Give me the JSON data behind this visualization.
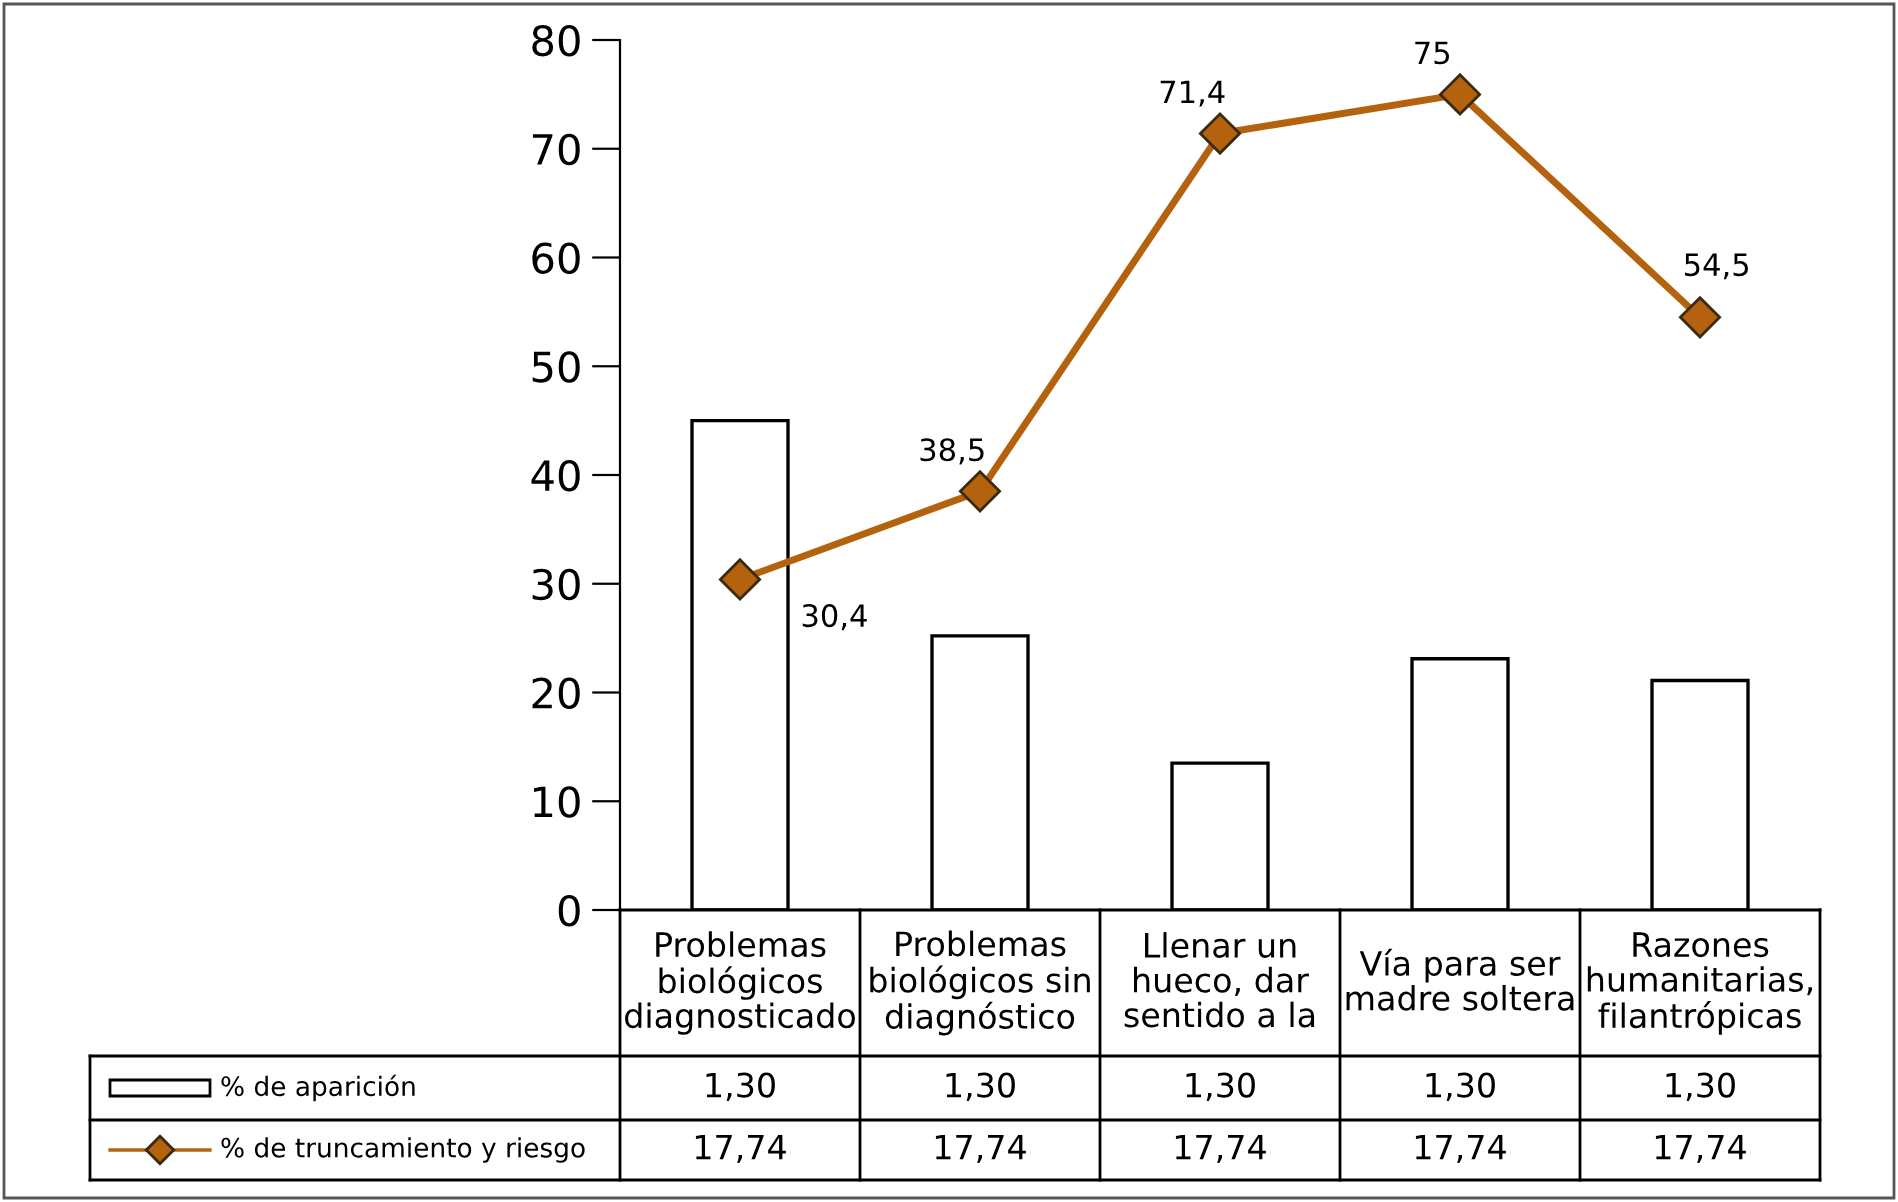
{
  "chart_data": {
    "type": "bar",
    "categories": [
      "Problemas\nbiológicos\ndiagnosticado",
      "Problemas\nbiológicos sin\ndiagnóstico",
      "Llenar un\nhueco, dar\nsentido a la",
      "Vía para ser\nmadre soltera",
      "Razones\nhumanitarias,\nfilantrópicas"
    ],
    "series": [
      {
        "name": "% de aparición",
        "color": "#ffffff",
        "values": [
          45,
          25.2,
          13.5,
          23.1,
          21.1
        ]
      },
      {
        "name": "% de truncamiento y riesgo",
        "type": "line",
        "color": "#b5620f",
        "values": [
          30.4,
          38.5,
          71.4,
          75,
          54.5
        ],
        "value_labels": [
          "30,4",
          "38,5",
          "71,4",
          "75",
          "54,5"
        ]
      }
    ],
    "annotations": [
      "1,30",
      "1,30",
      "1,30",
      "1,30",
      "1,30",
      "17,74",
      "17,74",
      "17,74",
      "17,74",
      "17,74"
    ],
    "ylim": [
      0,
      80
    ],
    "yticks": [
      0,
      10,
      20,
      30,
      40,
      50,
      60,
      70,
      80
    ],
    "marker": "diamond",
    "legend": "bottom",
    "grid": false
  }
}
